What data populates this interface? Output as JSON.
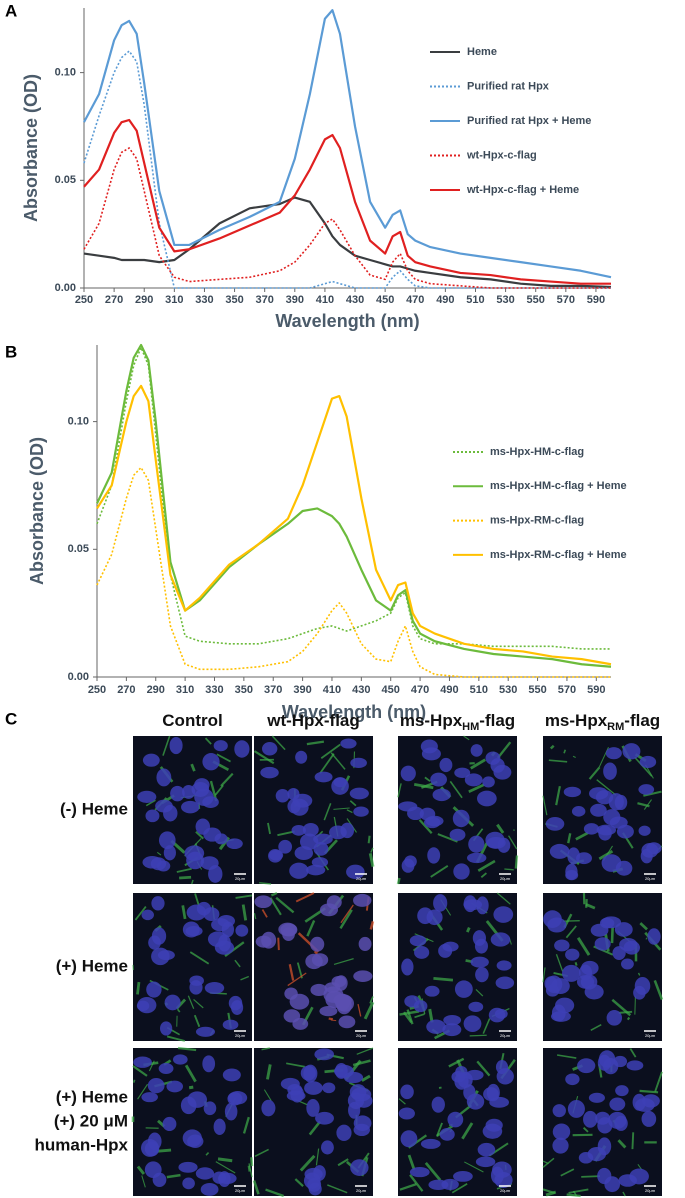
{
  "chart_data": [
    {
      "type": "line",
      "panel": "A",
      "xlabel": "Wavelength (nm)",
      "ylabel": "Absorbance (OD)",
      "legend": "right",
      "x": [
        250,
        260,
        270,
        275,
        280,
        285,
        290,
        300,
        310,
        320,
        340,
        360,
        380,
        390,
        400,
        410,
        415,
        420,
        430,
        440,
        450,
        455,
        460,
        465,
        470,
        480,
        500,
        520,
        540,
        560,
        580,
        600
      ],
      "xlim": [
        250,
        600
      ],
      "ylim": [
        0,
        0.13
      ],
      "xticks": [
        250,
        270,
        290,
        310,
        330,
        350,
        370,
        390,
        410,
        430,
        450,
        470,
        490,
        510,
        530,
        550,
        570,
        590
      ],
      "yticks": [
        {
          "value": 0,
          "label": "0.00"
        },
        0.05,
        {
          "value": 0.1,
          "label": "0.10"
        }
      ],
      "series": [
        {
          "name": "Heme",
          "color": "#3a3d40",
          "style": "solid",
          "values": [
            0.016,
            0.015,
            0.014,
            0.013,
            0.013,
            0.013,
            0.013,
            0.012,
            0.013,
            0.018,
            0.03,
            0.037,
            0.039,
            0.042,
            0.04,
            0.03,
            0.024,
            0.02,
            0.015,
            0.013,
            0.011,
            0.01,
            0.01,
            0.009,
            0.008,
            0.007,
            0.005,
            0.004,
            0.002,
            0.001,
            0.001,
            0.0005
          ]
        },
        {
          "name": "Purified rat Hpx",
          "color": "#5b9bd5",
          "style": "dotted",
          "values": [
            0.058,
            0.08,
            0.1,
            0.107,
            0.11,
            0.105,
            0.085,
            0.03,
            0.0,
            0.0,
            0.0,
            0.0,
            0.0,
            0.0,
            0.0,
            0.002,
            0.003,
            0.002,
            0.0,
            0.0,
            0.0,
            0.005,
            0.008,
            0.004,
            0.001,
            0.0,
            0.0,
            0.0,
            0.0,
            0.0,
            0.0,
            0.0
          ]
        },
        {
          "name": "Purified rat Hpx + Heme",
          "color": "#5b9bd5",
          "style": "solid",
          "values": [
            0.077,
            0.09,
            0.115,
            0.122,
            0.124,
            0.118,
            0.095,
            0.045,
            0.02,
            0.02,
            0.027,
            0.033,
            0.04,
            0.06,
            0.09,
            0.125,
            0.129,
            0.118,
            0.075,
            0.04,
            0.028,
            0.034,
            0.036,
            0.025,
            0.022,
            0.019,
            0.016,
            0.014,
            0.012,
            0.01,
            0.008,
            0.005
          ]
        },
        {
          "name": "wt-Hpx-c-flag",
          "color": "#e02020",
          "style": "dotted",
          "values": [
            0.018,
            0.03,
            0.055,
            0.063,
            0.065,
            0.06,
            0.045,
            0.015,
            0.005,
            0.003,
            0.004,
            0.005,
            0.008,
            0.012,
            0.02,
            0.03,
            0.032,
            0.027,
            0.015,
            0.006,
            0.004,
            0.012,
            0.016,
            0.008,
            0.004,
            0.002,
            0.001,
            0.0,
            0.0,
            0.0,
            0.0,
            0.0
          ]
        },
        {
          "name": "wt-Hpx-c-flag + Heme",
          "color": "#e02020",
          "style": "solid",
          "values": [
            0.047,
            0.055,
            0.072,
            0.077,
            0.078,
            0.073,
            0.058,
            0.028,
            0.017,
            0.018,
            0.023,
            0.029,
            0.035,
            0.043,
            0.055,
            0.069,
            0.071,
            0.065,
            0.04,
            0.022,
            0.016,
            0.024,
            0.026,
            0.015,
            0.012,
            0.01,
            0.007,
            0.006,
            0.004,
            0.003,
            0.002,
            0.002
          ]
        }
      ]
    },
    {
      "type": "line",
      "panel": "B",
      "xlabel": "Wavelength (nm)",
      "ylabel": "Absorbance (OD)",
      "legend": "right",
      "x": [
        250,
        260,
        270,
        275,
        280,
        285,
        290,
        300,
        310,
        320,
        340,
        360,
        380,
        390,
        400,
        410,
        415,
        420,
        430,
        440,
        450,
        455,
        460,
        465,
        470,
        480,
        500,
        520,
        540,
        560,
        580,
        600
      ],
      "xlim": [
        250,
        600
      ],
      "ylim": [
        0,
        0.13
      ],
      "xticks": [
        250,
        270,
        290,
        310,
        330,
        350,
        370,
        390,
        410,
        430,
        450,
        470,
        490,
        510,
        530,
        550,
        570,
        590
      ],
      "yticks": [
        {
          "value": 0,
          "label": "0.00"
        },
        0.05,
        {
          "value": 0.1,
          "label": "0.10"
        }
      ],
      "series": [
        {
          "name": "ms-Hpx-HM-c-flag",
          "color": "#6cbb3c",
          "style": "dotted",
          "values": [
            0.06,
            0.075,
            0.108,
            0.122,
            0.129,
            0.122,
            0.095,
            0.04,
            0.016,
            0.014,
            0.013,
            0.013,
            0.015,
            0.017,
            0.019,
            0.02,
            0.019,
            0.018,
            0.02,
            0.022,
            0.025,
            0.031,
            0.033,
            0.02,
            0.015,
            0.013,
            0.013,
            0.012,
            0.012,
            0.012,
            0.011,
            0.011
          ]
        },
        {
          "name": "ms-Hpx-HM-c-flag + Heme",
          "color": "#6cbb3c",
          "style": "solid",
          "values": [
            0.068,
            0.08,
            0.112,
            0.125,
            0.13,
            0.124,
            0.1,
            0.045,
            0.026,
            0.03,
            0.043,
            0.052,
            0.06,
            0.065,
            0.066,
            0.063,
            0.06,
            0.055,
            0.042,
            0.03,
            0.026,
            0.032,
            0.034,
            0.022,
            0.017,
            0.014,
            0.011,
            0.009,
            0.008,
            0.007,
            0.005,
            0.004
          ]
        },
        {
          "name": "ms-Hpx-RM-c-flag",
          "color": "#ffc000",
          "style": "dotted",
          "values": [
            0.036,
            0.048,
            0.07,
            0.079,
            0.082,
            0.077,
            0.058,
            0.02,
            0.005,
            0.003,
            0.003,
            0.004,
            0.006,
            0.01,
            0.017,
            0.026,
            0.029,
            0.025,
            0.013,
            0.007,
            0.006,
            0.014,
            0.02,
            0.01,
            0.004,
            0.001,
            0.0,
            0.0,
            0.0,
            0.0,
            0.0,
            0.0
          ]
        },
        {
          "name": "ms-Hpx-RM-c-flag + Heme",
          "color": "#ffc000",
          "style": "solid",
          "values": [
            0.066,
            0.075,
            0.1,
            0.11,
            0.114,
            0.108,
            0.085,
            0.04,
            0.026,
            0.031,
            0.044,
            0.052,
            0.062,
            0.075,
            0.092,
            0.109,
            0.11,
            0.102,
            0.07,
            0.042,
            0.03,
            0.036,
            0.037,
            0.025,
            0.02,
            0.017,
            0.013,
            0.011,
            0.01,
            0.008,
            0.007,
            0.005
          ]
        }
      ]
    }
  ],
  "panel_c": {
    "panel": "C",
    "columns": [
      {
        "text": "Control"
      },
      {
        "text": "wt-Hpx-flag"
      },
      {
        "text": "ms-Hpx",
        "sub": "HM",
        "after": "-flag"
      },
      {
        "text": "ms-Hpx",
        "sub": "RM",
        "after": "-flag"
      }
    ],
    "rows": [
      [
        "(-) Heme"
      ],
      [
        "(+) Heme"
      ],
      [
        "(+) Heme",
        "(+) 20 μM",
        "human-Hpx"
      ]
    ],
    "scale_bar": "20μm"
  }
}
